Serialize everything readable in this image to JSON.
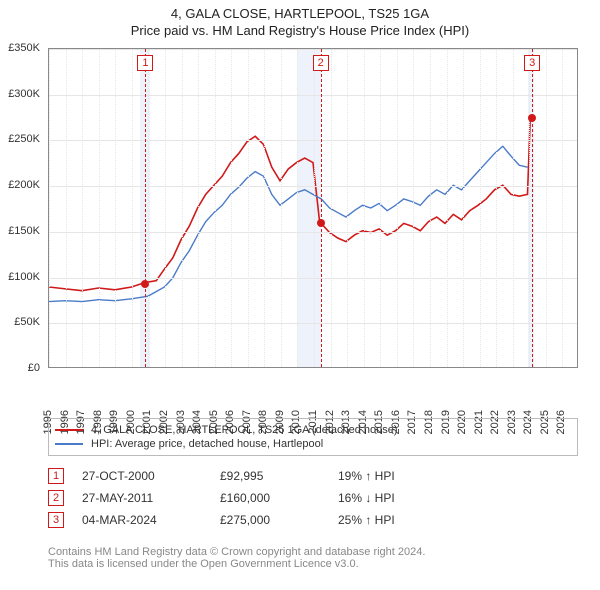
{
  "title_main": "4, GALA CLOSE, HARTLEPOOL, TS25 1GA",
  "title_sub": "Price paid vs. HM Land Registry's House Price Index (HPI)",
  "chart": {
    "background_color": "#ffffff",
    "grid_color": "#e6e6e6",
    "axis_color": "#888888",
    "y": {
      "min": 0,
      "max": 350000,
      "step": 50000,
      "labels": [
        "£0",
        "£50K",
        "£100K",
        "£150K",
        "£200K",
        "£250K",
        "£300K",
        "£350K"
      ]
    },
    "x": {
      "min": 1995,
      "max": 2027,
      "step": 1,
      "labels": [
        "1995",
        "1996",
        "1997",
        "1998",
        "1999",
        "2000",
        "2001",
        "2002",
        "2003",
        "2004",
        "2005",
        "2006",
        "2007",
        "2008",
        "2009",
        "2010",
        "2011",
        "2012",
        "2013",
        "2014",
        "2015",
        "2016",
        "2017",
        "2018",
        "2019",
        "2020",
        "2021",
        "2022",
        "2023",
        "2024",
        "2025",
        "2026"
      ]
    },
    "shaded_ranges": [
      {
        "from": 2000.5,
        "to": 2001.1
      },
      {
        "from": 2010.0,
        "to": 2011.4
      },
      {
        "from": 2023.9,
        "to": 2024.3
      }
    ],
    "series": [
      {
        "name": "price_paid",
        "label": "4, GALA CLOSE, HARTLEPOOL, TS25 1GA (detached house)",
        "color": "#d11919",
        "width": 1.6,
        "points": [
          [
            1995,
            88000
          ],
          [
            1996,
            86000
          ],
          [
            1997,
            84000
          ],
          [
            1998,
            87000
          ],
          [
            1999,
            85000
          ],
          [
            2000,
            88000
          ],
          [
            2000.82,
            92995
          ],
          [
            2001.5,
            95000
          ],
          [
            2002,
            108000
          ],
          [
            2002.5,
            120000
          ],
          [
            2003,
            140000
          ],
          [
            2003.5,
            155000
          ],
          [
            2004,
            175000
          ],
          [
            2004.5,
            190000
          ],
          [
            2005,
            200000
          ],
          [
            2005.5,
            210000
          ],
          [
            2006,
            225000
          ],
          [
            2006.5,
            235000
          ],
          [
            2007,
            248000
          ],
          [
            2007.5,
            254000
          ],
          [
            2008,
            245000
          ],
          [
            2008.5,
            220000
          ],
          [
            2009,
            205000
          ],
          [
            2009.5,
            218000
          ],
          [
            2010,
            225000
          ],
          [
            2010.5,
            230000
          ],
          [
            2011,
            225000
          ],
          [
            2011.4,
            160000
          ],
          [
            2012,
            148000
          ],
          [
            2012.5,
            142000
          ],
          [
            2013,
            138000
          ],
          [
            2013.5,
            145000
          ],
          [
            2014,
            150000
          ],
          [
            2014.5,
            148000
          ],
          [
            2015,
            152000
          ],
          [
            2015.5,
            145000
          ],
          [
            2016,
            150000
          ],
          [
            2016.5,
            158000
          ],
          [
            2017,
            155000
          ],
          [
            2017.5,
            150000
          ],
          [
            2018,
            160000
          ],
          [
            2018.5,
            165000
          ],
          [
            2019,
            158000
          ],
          [
            2019.5,
            168000
          ],
          [
            2020,
            162000
          ],
          [
            2020.5,
            172000
          ],
          [
            2021,
            178000
          ],
          [
            2021.5,
            185000
          ],
          [
            2022,
            195000
          ],
          [
            2022.5,
            200000
          ],
          [
            2023,
            190000
          ],
          [
            2023.5,
            188000
          ],
          [
            2024.0,
            190000
          ],
          [
            2024.17,
            275000
          ]
        ]
      },
      {
        "name": "hpi",
        "label": "HPI: Average price, detached house, Hartlepool",
        "color": "#4a7bc8",
        "width": 1.4,
        "points": [
          [
            1995,
            72000
          ],
          [
            1996,
            73000
          ],
          [
            1997,
            72000
          ],
          [
            1998,
            74000
          ],
          [
            1999,
            73000
          ],
          [
            2000,
            75000
          ],
          [
            2001,
            78000
          ],
          [
            2002,
            88000
          ],
          [
            2002.5,
            98000
          ],
          [
            2003,
            115000
          ],
          [
            2003.5,
            128000
          ],
          [
            2004,
            145000
          ],
          [
            2004.5,
            160000
          ],
          [
            2005,
            170000
          ],
          [
            2005.5,
            178000
          ],
          [
            2006,
            190000
          ],
          [
            2006.5,
            198000
          ],
          [
            2007,
            208000
          ],
          [
            2007.5,
            215000
          ],
          [
            2008,
            210000
          ],
          [
            2008.5,
            190000
          ],
          [
            2009,
            178000
          ],
          [
            2009.5,
            185000
          ],
          [
            2010,
            192000
          ],
          [
            2010.5,
            195000
          ],
          [
            2011,
            190000
          ],
          [
            2011.5,
            185000
          ],
          [
            2012,
            175000
          ],
          [
            2012.5,
            170000
          ],
          [
            2013,
            165000
          ],
          [
            2013.5,
            172000
          ],
          [
            2014,
            178000
          ],
          [
            2014.5,
            175000
          ],
          [
            2015,
            180000
          ],
          [
            2015.5,
            172000
          ],
          [
            2016,
            178000
          ],
          [
            2016.5,
            185000
          ],
          [
            2017,
            182000
          ],
          [
            2017.5,
            178000
          ],
          [
            2018,
            188000
          ],
          [
            2018.5,
            195000
          ],
          [
            2019,
            190000
          ],
          [
            2019.5,
            200000
          ],
          [
            2020,
            195000
          ],
          [
            2020.5,
            205000
          ],
          [
            2021,
            215000
          ],
          [
            2021.5,
            225000
          ],
          [
            2022,
            235000
          ],
          [
            2022.5,
            243000
          ],
          [
            2023,
            232000
          ],
          [
            2023.5,
            222000
          ],
          [
            2024,
            220000
          ]
        ]
      }
    ],
    "events": [
      {
        "num": "1",
        "year": 2000.82,
        "value": 92995,
        "date": "27-OCT-2000",
        "price": "£92,995",
        "delta": "19% ↑ HPI",
        "color": "#d11919"
      },
      {
        "num": "2",
        "year": 2011.4,
        "value": 160000,
        "date": "27-MAY-2011",
        "price": "£160,000",
        "delta": "16% ↓ HPI",
        "color": "#d11919"
      },
      {
        "num": "3",
        "year": 2024.17,
        "value": 275000,
        "date": "04-MAR-2024",
        "price": "£275,000",
        "delta": "25% ↑ HPI",
        "color": "#d11919"
      }
    ]
  },
  "legend_header": {
    "series1": "4, GALA CLOSE, HARTLEPOOL, TS25 1GA (detached house)",
    "series2": "HPI: Average price, detached house, Hartlepool"
  },
  "footnote_l1": "Contains HM Land Registry data © Crown copyright and database right 2024.",
  "footnote_l2": "This data is licensed under the Open Government Licence v3.0."
}
